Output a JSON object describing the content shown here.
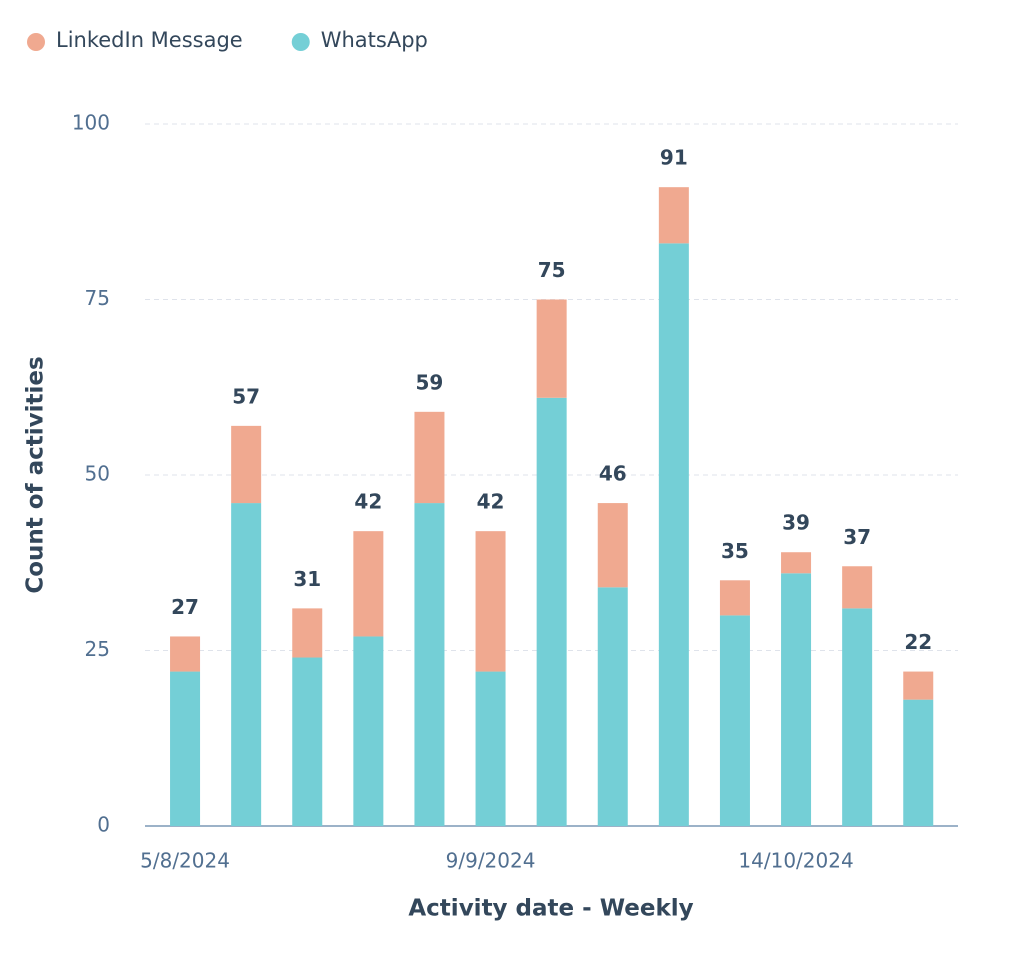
{
  "chart_data": {
    "type": "stacked_bar",
    "x_label": "Activity date - Weekly",
    "y_label": "Count of activities",
    "categories": [
      "5/8/2024",
      null,
      null,
      null,
      null,
      "9/9/2024",
      null,
      null,
      null,
      null,
      "14/10/2024",
      null,
      null
    ],
    "series": [
      {
        "name": "LinkedIn Message",
        "color": "#f0a990",
        "values": [
          5,
          11,
          7,
          15,
          13,
          20,
          14,
          12,
          8,
          5,
          3,
          6,
          4
        ]
      },
      {
        "name": "WhatsApp",
        "color": "#74cfd6",
        "values": [
          22,
          46,
          24,
          27,
          46,
          22,
          61,
          34,
          83,
          30,
          36,
          31,
          18
        ]
      }
    ],
    "totals": [
      27,
      57,
      31,
      42,
      59,
      42,
      75,
      46,
      91,
      35,
      39,
      37,
      22
    ],
    "ylim": [
      0,
      100
    ],
    "yticks": [
      0,
      25,
      50,
      75,
      100
    ],
    "grid": true,
    "legend": "top-left"
  }
}
